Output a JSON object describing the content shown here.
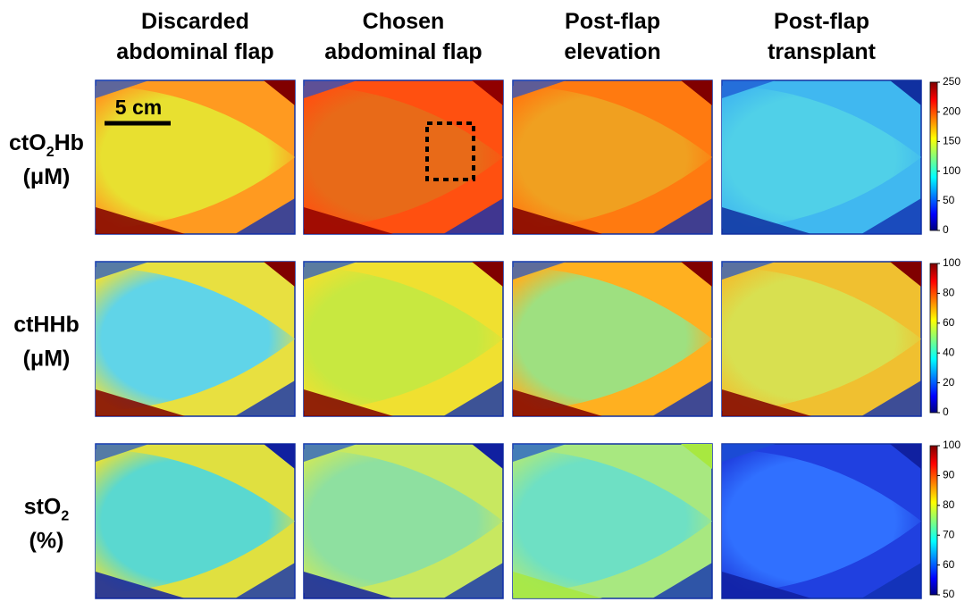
{
  "columns": [
    [
      "Discarded",
      "abdominal flap"
    ],
    [
      "Chosen",
      "abdominal flap"
    ],
    [
      "Post-flap",
      "elevation"
    ],
    [
      "Post-flap",
      "transplant"
    ]
  ],
  "rows": [
    {
      "label": {
        "before": "ctO",
        "sub": "2",
        "after": "Hb"
      },
      "unit": "(μM)",
      "colorbar": {
        "lim": [
          0,
          250
        ],
        "ticks": [
          0,
          50,
          100,
          150,
          200,
          250
        ]
      }
    },
    {
      "label": {
        "before": "ctHHb"
      },
      "unit": "(μM)",
      "colorbar": {
        "lim": [
          0,
          100
        ],
        "ticks": [
          0,
          20,
          40,
          60,
          80,
          100
        ]
      }
    },
    {
      "label": {
        "before": "stO",
        "sub": "2"
      },
      "unit": "(%)",
      "colorbar": {
        "lim": [
          50,
          100
        ],
        "ticks": [
          50,
          60,
          70,
          80,
          90,
          100
        ]
      }
    }
  ],
  "scale_bar": "5 cm"
}
